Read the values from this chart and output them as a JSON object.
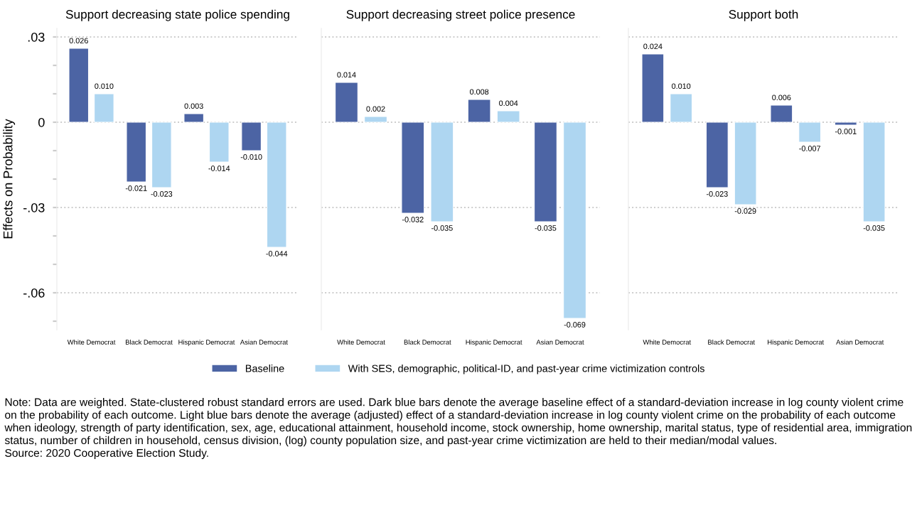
{
  "chart_data": [
    {
      "type": "bar",
      "title": "Support decreasing state police spending",
      "ylabel": "Effects on Probability",
      "categories": [
        "White Democrat",
        "Black Democrat",
        "Hispanic Democrat",
        "Asian Democrat"
      ],
      "series": [
        {
          "name": "Baseline",
          "color": "#4c64a4",
          "values": [
            0.026,
            -0.021,
            0.003,
            -0.01
          ]
        },
        {
          "name": "With SES, demographic, political-ID, and past-year crime victimization controls",
          "color": "#aed6f1",
          "values": [
            0.01,
            -0.023,
            -0.014,
            -0.044
          ]
        }
      ],
      "value_labels": [
        [
          "0.026",
          "-0.021",
          "0.003",
          "-0.010"
        ],
        [
          "0.010",
          "-0.023",
          "-0.014",
          "-0.044"
        ]
      ],
      "ylim": [
        -0.073,
        0.033
      ],
      "yticks": [
        {
          "value": 0.03,
          "label": ".03"
        },
        {
          "value": 0.02,
          "label": null
        },
        {
          "value": 0.01,
          "label": null
        },
        0,
        {
          "value": -0.01,
          "label": null
        },
        {
          "value": -0.02,
          "label": null
        },
        {
          "value": -0.03,
          "label": "-.03"
        },
        {
          "value": -0.04,
          "label": null
        },
        {
          "value": -0.05,
          "label": null
        },
        {
          "value": -0.06,
          "label": "-.06"
        },
        {
          "value": -0.07,
          "label": null
        }
      ],
      "grid": "y",
      "legend": "bottom",
      "annotations": [
        "Note: Data are weighted. State-clustered robust standard errors are used. Dark blue bars denote the average baseline effect of a standard-deviation increase in log county violent crime on the probability of each outcome. Light blue bars denote the average (adjusted) effect of a standard-deviation increase in log county violent crime on the probability of each outcome when ideology, strength of party identification, sex, age, educational attainment, household income, stock ownership, home ownership, marital status, type of residential area, immigration status, number of children in household, census division, (log) county population size, and past-year crime victimization are held to their median/modal values.",
        "Source: 2020 Cooperative Election Study."
      ]
    },
    {
      "type": "bar",
      "title": "Support decreasing street police presence",
      "categories": [
        "White Democrat",
        "Black Democrat",
        "Hispanic Democrat",
        "Asian Democrat"
      ],
      "series": [
        {
          "name": "Baseline",
          "color": "#4c64a4",
          "values": [
            0.014,
            -0.032,
            0.008,
            -0.035
          ]
        },
        {
          "name": "With SES, demographic, political-ID, and past-year crime victimization controls",
          "color": "#aed6f1",
          "values": [
            0.002,
            -0.035,
            0.004,
            -0.069
          ]
        }
      ],
      "value_labels": [
        [
          "0.014",
          "-0.032",
          "0.008",
          "-0.035"
        ],
        [
          "0.002",
          "-0.035",
          "0.004",
          "-0.069"
        ]
      ],
      "ylim": [
        -0.073,
        0.033
      ],
      "yticks": [
        {
          "value": 0.03,
          "label": null
        },
        {
          "value": 0,
          "label": null
        },
        {
          "value": -0.03,
          "label": null
        },
        {
          "value": -0.06,
          "label": null
        }
      ],
      "grid": "y",
      "tick_labels": "x"
    },
    {
      "type": "bar",
      "title": "Support both",
      "categories": [
        "White Democrat",
        "Black Democrat",
        "Hispanic Democrat",
        "Asian Democrat"
      ],
      "series": [
        {
          "name": "Baseline",
          "color": "#4c64a4",
          "values": [
            0.024,
            -0.023,
            0.006,
            -0.001
          ]
        },
        {
          "name": "With SES, demographic, political-ID, and past-year crime victimization controls",
          "color": "#aed6f1",
          "values": [
            0.01,
            -0.029,
            -0.007,
            -0.035
          ]
        }
      ],
      "value_labels": [
        [
          "0.024",
          "-0.023",
          "0.006",
          "-0.001"
        ],
        [
          "0.010",
          "-0.029",
          "-0.007",
          "-0.035"
        ]
      ],
      "ylim": [
        -0.073,
        0.033
      ],
      "yticks": [
        {
          "value": 0.03,
          "label": null
        },
        {
          "value": 0,
          "label": null
        },
        {
          "value": -0.03,
          "label": null
        },
        {
          "value": -0.06,
          "label": null
        }
      ],
      "grid": "y",
      "tick_labels": "x"
    }
  ]
}
